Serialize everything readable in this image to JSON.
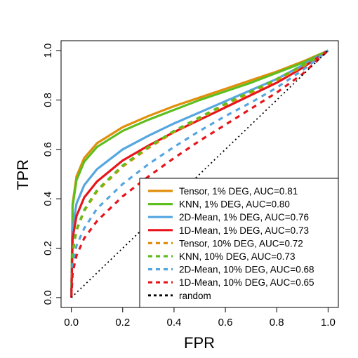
{
  "chart_data": {
    "type": "line",
    "xlabel": "FPR",
    "ylabel": "TPR",
    "xlim": [
      0,
      1
    ],
    "ylim": [
      0,
      1
    ],
    "xticks": [
      "0.0",
      "0.2",
      "0.4",
      "0.6",
      "0.8",
      "1.0"
    ],
    "yticks": [
      "0.0",
      "0.2",
      "0.4",
      "0.6",
      "0.8",
      "1.0"
    ],
    "grid": false,
    "legend_position": "bottom-right",
    "series": [
      {
        "name": "Tensor, 1% DEG, AUC=0.81",
        "color": "#E08E0B",
        "style": "solid",
        "auc": 0.81,
        "x": [
          0,
          0.005,
          0.02,
          0.05,
          0.1,
          0.2,
          0.3,
          0.4,
          0.5,
          0.6,
          0.7,
          0.8,
          0.9,
          1.0
        ],
        "y": [
          0,
          0.38,
          0.49,
          0.565,
          0.625,
          0.69,
          0.735,
          0.775,
          0.81,
          0.845,
          0.88,
          0.915,
          0.955,
          1.0
        ]
      },
      {
        "name": "KNN, 1% DEG, AUC=0.80",
        "color": "#5DBE1D",
        "style": "solid",
        "auc": 0.8,
        "x": [
          0,
          0.005,
          0.02,
          0.05,
          0.1,
          0.2,
          0.3,
          0.4,
          0.5,
          0.6,
          0.7,
          0.8,
          0.9,
          1.0
        ],
        "y": [
          0,
          0.37,
          0.475,
          0.55,
          0.61,
          0.675,
          0.72,
          0.76,
          0.8,
          0.835,
          0.87,
          0.91,
          0.95,
          1.0
        ]
      },
      {
        "name": "2D-Mean, 1% DEG, AUC=0.76",
        "color": "#56A6E0",
        "style": "solid",
        "auc": 0.76,
        "x": [
          0,
          0.005,
          0.02,
          0.05,
          0.1,
          0.2,
          0.3,
          0.4,
          0.5,
          0.6,
          0.7,
          0.8,
          0.9,
          1.0
        ],
        "y": [
          0,
          0.28,
          0.38,
          0.455,
          0.52,
          0.6,
          0.655,
          0.705,
          0.75,
          0.795,
          0.84,
          0.885,
          0.94,
          1.0
        ]
      },
      {
        "name": "1D-Mean, 1% DEG, AUC=0.73",
        "color": "#E8141B",
        "style": "solid",
        "auc": 0.73,
        "x": [
          0,
          0.005,
          0.02,
          0.05,
          0.1,
          0.2,
          0.3,
          0.4,
          0.5,
          0.6,
          0.7,
          0.8,
          0.9,
          1.0
        ],
        "y": [
          0,
          0.24,
          0.33,
          0.405,
          0.47,
          0.555,
          0.615,
          0.67,
          0.72,
          0.77,
          0.82,
          0.87,
          0.93,
          1.0
        ]
      },
      {
        "name": "Tensor, 10% DEG, AUC=0.72",
        "color": "#E08E0B",
        "style": "dashed",
        "auc": 0.72,
        "x": [
          0,
          0.005,
          0.02,
          0.05,
          0.1,
          0.2,
          0.3,
          0.4,
          0.5,
          0.6,
          0.7,
          0.8,
          0.9,
          1.0
        ],
        "y": [
          0,
          0.18,
          0.27,
          0.35,
          0.43,
          0.53,
          0.605,
          0.67,
          0.725,
          0.78,
          0.83,
          0.88,
          0.935,
          1.0
        ]
      },
      {
        "name": "KNN, 10% DEG, AUC=0.73",
        "color": "#5DBE1D",
        "style": "dashed",
        "auc": 0.73,
        "x": [
          0,
          0.005,
          0.02,
          0.05,
          0.1,
          0.2,
          0.3,
          0.4,
          0.5,
          0.6,
          0.7,
          0.8,
          0.9,
          1.0
        ],
        "y": [
          0,
          0.185,
          0.275,
          0.355,
          0.435,
          0.535,
          0.61,
          0.675,
          0.73,
          0.785,
          0.835,
          0.885,
          0.94,
          1.0
        ]
      },
      {
        "name": "2D-Mean, 10% DEG, AUC=0.68",
        "color": "#56A6E0",
        "style": "dashed",
        "auc": 0.68,
        "x": [
          0,
          0.005,
          0.02,
          0.05,
          0.1,
          0.2,
          0.3,
          0.4,
          0.5,
          0.6,
          0.7,
          0.8,
          0.9,
          1.0
        ],
        "y": [
          0,
          0.13,
          0.21,
          0.28,
          0.36,
          0.46,
          0.54,
          0.61,
          0.675,
          0.735,
          0.79,
          0.85,
          0.92,
          1.0
        ]
      },
      {
        "name": "1D-Mean, 10% DEG, AUC=0.65",
        "color": "#E8141B",
        "style": "dashed",
        "auc": 0.65,
        "x": [
          0,
          0.005,
          0.02,
          0.05,
          0.1,
          0.2,
          0.3,
          0.4,
          0.5,
          0.6,
          0.7,
          0.8,
          0.9,
          1.0
        ],
        "y": [
          0,
          0.1,
          0.17,
          0.24,
          0.31,
          0.41,
          0.49,
          0.565,
          0.635,
          0.7,
          0.765,
          0.83,
          0.905,
          1.0
        ]
      },
      {
        "name": "random",
        "color": "#000000",
        "style": "dotted",
        "x": [
          0,
          1
        ],
        "y": [
          0,
          1
        ]
      }
    ]
  }
}
